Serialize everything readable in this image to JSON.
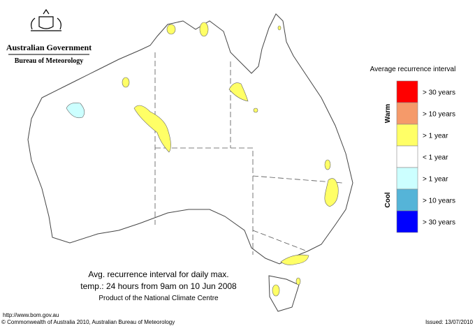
{
  "header": {
    "government": "Australian Government",
    "bureau": "Bureau of Meteorology"
  },
  "legend": {
    "title": "Average recurrence interval",
    "groups": [
      {
        "label": "Warm",
        "start": 0,
        "end": 2
      },
      {
        "label": "Cool",
        "start": 4,
        "end": 6
      }
    ],
    "items": [
      {
        "label": "> 30 years",
        "color": "#ff0000"
      },
      {
        "label": "> 10 years",
        "color": "#f59a6a"
      },
      {
        "label": "> 1 year",
        "color": "#ffff66"
      },
      {
        "label": "< 1 year",
        "color": "#ffffff"
      },
      {
        "label": "> 1 year",
        "color": "#ccffff"
      },
      {
        "label": "> 10 years",
        "color": "#55b4d8"
      },
      {
        "label": "> 30 years",
        "color": "#0000ff"
      }
    ]
  },
  "caption": [
    "Avg. recurrence interval for daily max.",
    "temp.: 24 hours from 9am on 10 Jun 2008",
    "Product of the National Climate Centre"
  ],
  "footer": {
    "url": "http://www.bom.gov.au",
    "copyright": "© Commonwealth of Australia 2010, Australian Bureau of Meteorology",
    "issued": "Issued: 13/07/2010"
  }
}
